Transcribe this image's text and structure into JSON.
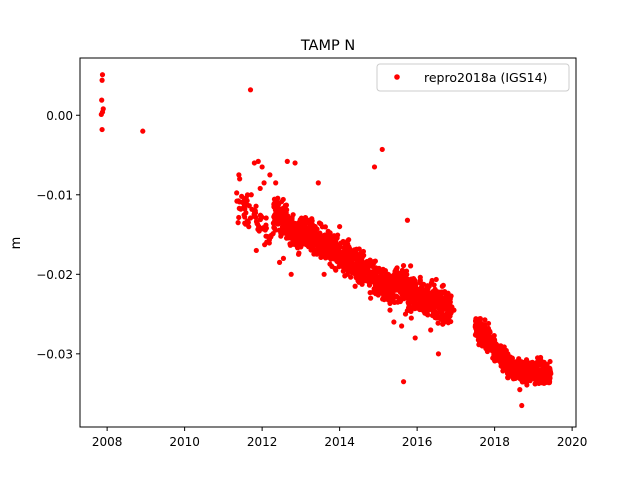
{
  "chart_data": {
    "type": "scatter",
    "title": "TAMP N",
    "xlabel": "",
    "ylabel": "m",
    "xlim": [
      2007.3,
      2020.1
    ],
    "ylim": [
      -0.0392,
      0.0072
    ],
    "xticks": [
      2008,
      2010,
      2012,
      2014,
      2016,
      2018,
      2020
    ],
    "xtick_labels": [
      "2008",
      "2010",
      "2012",
      "2014",
      "2016",
      "2018",
      "2020"
    ],
    "yticks": [
      0.0,
      -0.01,
      -0.02,
      -0.03
    ],
    "ytick_labels": [
      "0.00",
      "−0.01",
      "−0.02",
      "−0.03"
    ],
    "legend_position": "top-right",
    "grid": false,
    "series": [
      {
        "name": "repro2018a (IGS14)",
        "color": "#ff0000",
        "marker": "circle",
        "points": [
          [
            2007.88,
            0.0051
          ],
          [
            2007.87,
            0.0044
          ],
          [
            2007.86,
            0.0019
          ],
          [
            2007.9,
            0.0008
          ],
          [
            2007.88,
            0.0004
          ],
          [
            2007.85,
            0.0001
          ],
          [
            2007.87,
            -0.0018
          ],
          [
            2008.92,
            -0.002
          ],
          [
            2011.7,
            0.0032
          ],
          [
            2011.4,
            -0.0075
          ],
          [
            2011.42,
            -0.008
          ],
          [
            2011.35,
            -0.0108
          ],
          [
            2011.45,
            -0.0118
          ],
          [
            2011.38,
            -0.0135
          ],
          [
            2011.55,
            -0.0128
          ],
          [
            2011.62,
            -0.0133
          ],
          [
            2011.72,
            -0.01
          ],
          [
            2011.8,
            -0.006
          ],
          [
            2011.9,
            -0.0058
          ],
          [
            2012.0,
            -0.0065
          ],
          [
            2011.85,
            -0.017
          ],
          [
            2011.95,
            -0.0092
          ],
          [
            2012.05,
            -0.0085
          ],
          [
            2012.2,
            -0.0075
          ],
          [
            2012.35,
            -0.0085
          ],
          [
            2012.4,
            -0.011
          ],
          [
            2012.5,
            -0.013
          ],
          [
            2012.6,
            -0.012
          ],
          [
            2012.7,
            -0.014
          ],
          [
            2012.8,
            -0.0125
          ],
          [
            2012.85,
            -0.006
          ],
          [
            2012.65,
            -0.0058
          ],
          [
            2012.45,
            -0.0185
          ],
          [
            2012.55,
            -0.018
          ],
          [
            2012.75,
            -0.02
          ],
          [
            2012.9,
            -0.015
          ],
          [
            2013.0,
            -0.0155
          ],
          [
            2013.1,
            -0.014
          ],
          [
            2013.2,
            -0.0165
          ],
          [
            2013.3,
            -0.015
          ],
          [
            2013.4,
            -0.017
          ],
          [
            2013.45,
            -0.0085
          ],
          [
            2013.55,
            -0.0175
          ],
          [
            2013.6,
            -0.02
          ],
          [
            2013.7,
            -0.0165
          ],
          [
            2013.8,
            -0.019
          ],
          [
            2013.9,
            -0.016
          ],
          [
            2014.0,
            -0.014
          ],
          [
            2014.1,
            -0.018
          ],
          [
            2014.2,
            -0.02
          ],
          [
            2014.3,
            -0.0185
          ],
          [
            2014.4,
            -0.0215
          ],
          [
            2014.5,
            -0.021
          ],
          [
            2014.6,
            -0.0205
          ],
          [
            2014.7,
            -0.019
          ],
          [
            2014.8,
            -0.023
          ],
          [
            2014.9,
            -0.0065
          ],
          [
            2015.0,
            -0.022
          ],
          [
            2015.1,
            -0.0043
          ],
          [
            2015.2,
            -0.0215
          ],
          [
            2015.3,
            -0.0245
          ],
          [
            2015.4,
            -0.026
          ],
          [
            2015.5,
            -0.0235
          ],
          [
            2015.6,
            -0.0265
          ],
          [
            2015.65,
            -0.0335
          ],
          [
            2015.7,
            -0.025
          ],
          [
            2015.75,
            -0.0132
          ],
          [
            2015.85,
            -0.0255
          ],
          [
            2015.95,
            -0.028
          ],
          [
            2016.05,
            -0.023
          ],
          [
            2016.15,
            -0.024
          ],
          [
            2016.25,
            -0.025
          ],
          [
            2016.35,
            -0.027
          ],
          [
            2016.45,
            -0.024
          ],
          [
            2016.55,
            -0.03
          ],
          [
            2016.65,
            -0.0215
          ],
          [
            2016.75,
            -0.025
          ],
          [
            2016.85,
            -0.023
          ],
          [
            2016.95,
            -0.0245
          ],
          [
            2017.55,
            -0.026
          ],
          [
            2017.65,
            -0.0275
          ],
          [
            2017.75,
            -0.0285
          ],
          [
            2017.85,
            -0.027
          ],
          [
            2017.95,
            -0.029
          ],
          [
            2018.05,
            -0.03
          ],
          [
            2018.15,
            -0.0305
          ],
          [
            2018.25,
            -0.0315
          ],
          [
            2018.35,
            -0.033
          ],
          [
            2018.45,
            -0.0325
          ],
          [
            2018.55,
            -0.032
          ],
          [
            2018.65,
            -0.0345
          ],
          [
            2018.75,
            -0.0335
          ],
          [
            2018.85,
            -0.032
          ],
          [
            2018.95,
            -0.033
          ],
          [
            2019.05,
            -0.0325
          ],
          [
            2019.15,
            -0.032
          ],
          [
            2019.25,
            -0.033
          ],
          [
            2019.35,
            -0.0335
          ],
          [
            2019.45,
            -0.0325
          ],
          [
            2018.7,
            -0.0365
          ]
        ],
        "dense_segments": [
          {
            "x": [
              2011.3,
              2012.3
            ],
            "y": [
              -0.011,
              -0.015
            ],
            "spread": 0.0018,
            "count": 60
          },
          {
            "x": [
              2012.3,
              2013.0
            ],
            "y": [
              -0.012,
              -0.0155
            ],
            "spread": 0.0018,
            "count": 240
          },
          {
            "x": [
              2013.0,
              2014.2
            ],
            "y": [
              -0.0145,
              -0.018
            ],
            "spread": 0.0017,
            "count": 400
          },
          {
            "x": [
              2014.2,
              2015.4
            ],
            "y": [
              -0.018,
              -0.022
            ],
            "spread": 0.0018,
            "count": 380
          },
          {
            "x": [
              2015.4,
              2016.9
            ],
            "y": [
              -0.021,
              -0.0245
            ],
            "spread": 0.0019,
            "count": 460
          },
          {
            "x": [
              2017.5,
              2018.0
            ],
            "y": [
              -0.0265,
              -0.029
            ],
            "spread": 0.0013,
            "count": 170
          },
          {
            "x": [
              2018.0,
              2018.5
            ],
            "y": [
              -0.0295,
              -0.032
            ],
            "spread": 0.0013,
            "count": 180
          },
          {
            "x": [
              2018.5,
              2019.45
            ],
            "y": [
              -0.032,
              -0.0325
            ],
            "spread": 0.0012,
            "count": 340
          }
        ]
      }
    ]
  }
}
